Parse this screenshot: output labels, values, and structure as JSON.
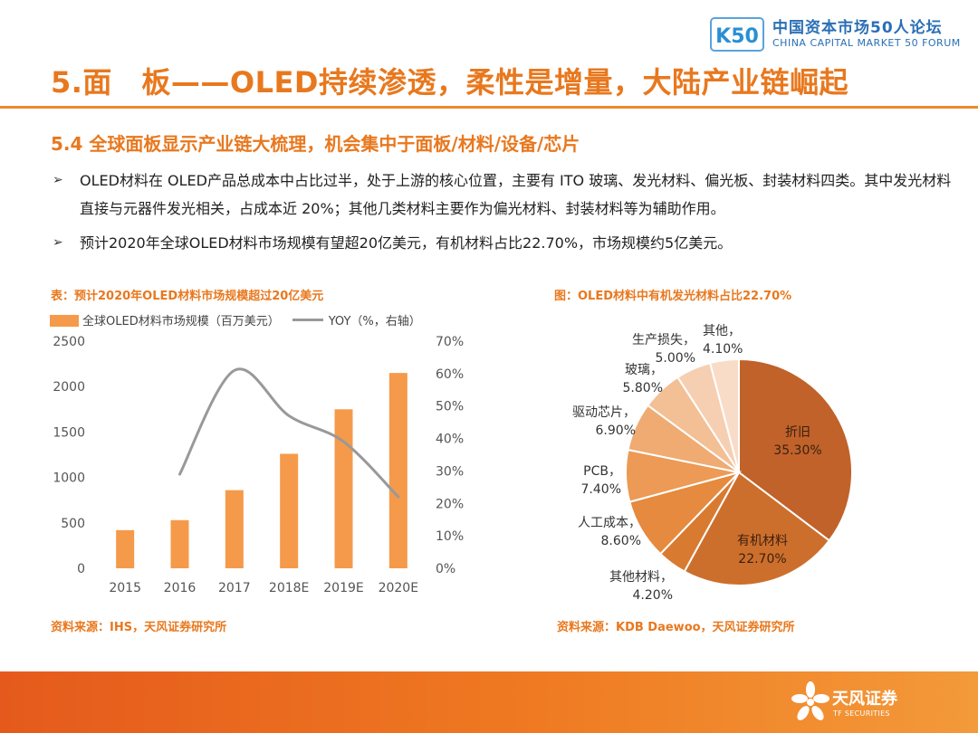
{
  "header": {
    "logo_cn": "中国资本市场50人论坛",
    "logo_en": "CHINA CAPITAL MARKET 50 FORUM",
    "logo_mark_text": "K50",
    "main_title": "5.面　板——OLED持续渗透，柔性是增量，大陆产业链崛起"
  },
  "section": {
    "subtitle": "5.4 全球面板显示产业链大梳理，机会集中于面板/材料/设备/芯片",
    "bullets": [
      "OLED材料在 OLED产品总成本中占比过半，处于上游的核心位置，主要有 ITO 玻璃、发光材料、偏光板、封装材料四类。其中发光材料直接与元器件发光相关，占成本近 20%；其他几类材料主要作为偏光材料、封装材料等为辅助作用。",
      "预计2020年全球OLED材料市场规模有望超20亿美元，有机材料占比22.70%，市场规模约5亿美元。"
    ],
    "bullet_symbol": "➢"
  },
  "chart_data": [
    {
      "type": "bar",
      "title": "表：预计2020年OLED材料市场规模超过20亿美元",
      "categories": [
        "2015",
        "2016",
        "2017",
        "2018E",
        "2019E",
        "2020E"
      ],
      "series": [
        {
          "name": "全球OLED材料市场规模（百万美元）",
          "type": "bar",
          "axis": "left",
          "values": [
            420,
            530,
            860,
            1260,
            1750,
            2150
          ],
          "color": "#f59a4a"
        },
        {
          "name": "YOY（%，右轴）",
          "type": "line",
          "axis": "right",
          "values": [
            null,
            29,
            61,
            47,
            39,
            22
          ],
          "color": "#999999"
        }
      ],
      "y_left": {
        "min": 0,
        "max": 2500,
        "ticks": [
          "0",
          "500",
          "1000",
          "1500",
          "2000",
          "2500"
        ]
      },
      "y_right": {
        "min": 0,
        "max": 70,
        "ticks": [
          "0%",
          "10%",
          "20%",
          "30%",
          "40%",
          "50%",
          "60%",
          "70%"
        ]
      },
      "grid": false,
      "legend": "top-left",
      "source": "资料来源：IHS，天风证券研究所"
    },
    {
      "type": "pie",
      "title": "图：OLED材料中有机发光材料占比22.70%",
      "slices": [
        {
          "label": "折旧",
          "value": 35.3,
          "value_text": "35.30%",
          "color": "#c0622a"
        },
        {
          "label": "有机材料",
          "value": 22.7,
          "value_text": "22.70%",
          "color": "#cd6f2c"
        },
        {
          "label": "其他材料",
          "value": 4.2,
          "value_text": "4.20%",
          "color": "#d97a31"
        },
        {
          "label": "人工成本",
          "value": 8.6,
          "value_text": "8.60%",
          "color": "#e58a3e"
        },
        {
          "label": "PCB",
          "value": 7.4,
          "value_text": "7.40%",
          "color": "#ec9a55"
        },
        {
          "label": "驱动芯片",
          "value": 6.9,
          "value_text": "6.90%",
          "color": "#efab72"
        },
        {
          "label": "玻璃",
          "value": 5.8,
          "value_text": "5.80%",
          "color": "#f3bf95"
        },
        {
          "label": "生产损失",
          "value": 5.0,
          "value_text": "5.00%",
          "color": "#f6cfb2"
        },
        {
          "label": "其他",
          "value": 4.1,
          "value_text": "4.10%",
          "color": "#f8dcc8"
        }
      ],
      "source": "资料来源：KDB Daewoo，天风证券研究所"
    }
  ],
  "footer": {
    "logo_cn": "天风证券",
    "logo_en": "TF SECURITIES"
  },
  "colors": {
    "accent": "#e8781e",
    "brand_blue": "#2a6fb5",
    "footer": "#ef7a22"
  }
}
